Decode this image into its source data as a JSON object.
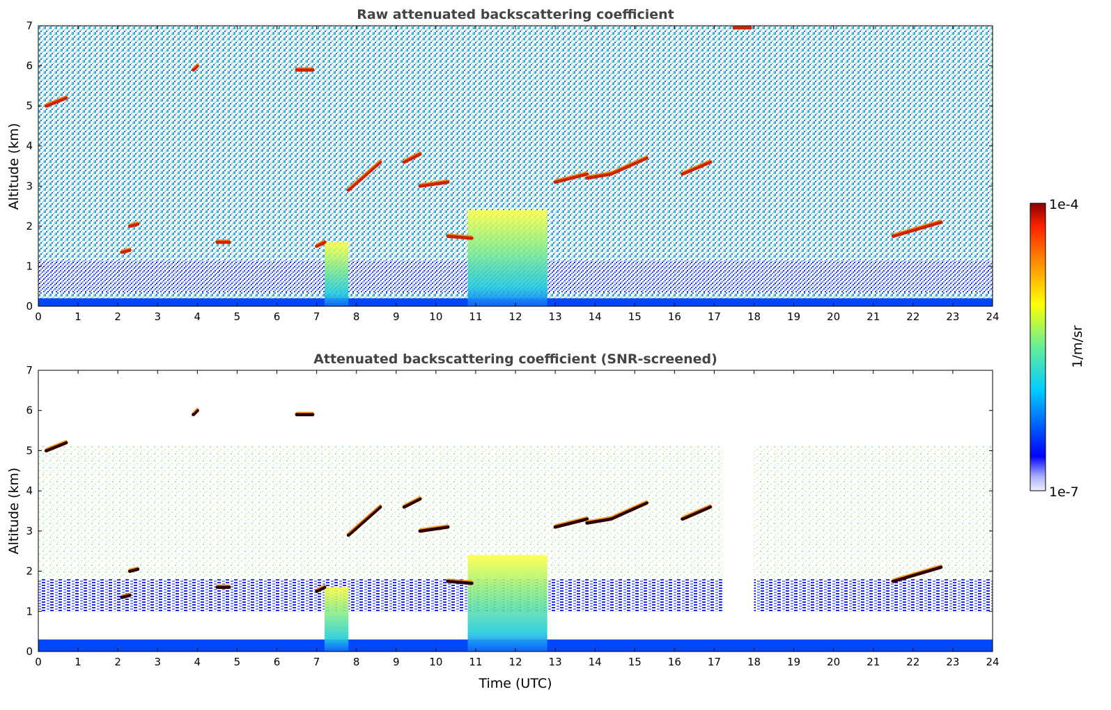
{
  "chart_data": [
    {
      "type": "heatmap",
      "title": "Raw attenuated backscattering coefficient",
      "xlabel": "",
      "ylabel": "Altitude (km)",
      "xlim": [
        0,
        24
      ],
      "ylim": [
        0,
        7
      ],
      "x_ticks": [
        "0",
        "1",
        "2",
        "3",
        "4",
        "5",
        "6",
        "7",
        "8",
        "9",
        "10",
        "11",
        "12",
        "13",
        "14",
        "15",
        "16",
        "17",
        "18",
        "19",
        "20",
        "21",
        "22",
        "23",
        "24"
      ],
      "y_ticks": [
        "0",
        "1",
        "2",
        "3",
        "4",
        "5",
        "6",
        "7"
      ],
      "layers": [
        {
          "feature": "surface layer",
          "t_start": 0,
          "t_end": 24,
          "alt_bottom": 0.0,
          "alt_top": 0.2,
          "level": 0.2
        },
        {
          "feature": "precipitation",
          "t_start": 7.2,
          "t_end": 7.8,
          "alt_bottom": 0.0,
          "alt_top": 1.6,
          "level": 0.55
        },
        {
          "feature": "precipitation",
          "t_start": 10.8,
          "t_end": 12.8,
          "alt_bottom": 0.0,
          "alt_top": 2.4,
          "level": 0.55
        }
      ],
      "cloud_segments": [
        {
          "t_start": 0.2,
          "t_end": 0.7,
          "alt_start": 5.0,
          "alt_end": 5.2
        },
        {
          "t_start": 2.1,
          "t_end": 2.3,
          "alt_start": 1.35,
          "alt_end": 1.4
        },
        {
          "t_start": 2.3,
          "t_end": 2.5,
          "alt_start": 2.0,
          "alt_end": 2.05
        },
        {
          "t_start": 3.9,
          "t_end": 4.0,
          "alt_start": 5.9,
          "alt_end": 6.0
        },
        {
          "t_start": 4.5,
          "t_end": 4.8,
          "alt_start": 1.6,
          "alt_end": 1.6
        },
        {
          "t_start": 6.5,
          "t_end": 6.9,
          "alt_start": 5.9,
          "alt_end": 5.9
        },
        {
          "t_start": 7.0,
          "t_end": 7.2,
          "alt_start": 1.5,
          "alt_end": 1.6
        },
        {
          "t_start": 7.8,
          "t_end": 8.6,
          "alt_start": 2.9,
          "alt_end": 3.6
        },
        {
          "t_start": 9.2,
          "t_end": 9.6,
          "alt_start": 3.6,
          "alt_end": 3.8
        },
        {
          "t_start": 9.6,
          "t_end": 10.3,
          "alt_start": 3.0,
          "alt_end": 3.1
        },
        {
          "t_start": 10.3,
          "t_end": 10.9,
          "alt_start": 1.75,
          "alt_end": 1.7
        },
        {
          "t_start": 13.0,
          "t_end": 13.8,
          "alt_start": 3.1,
          "alt_end": 3.3
        },
        {
          "t_start": 13.8,
          "t_end": 14.4,
          "alt_start": 3.2,
          "alt_end": 3.3
        },
        {
          "t_start": 14.4,
          "t_end": 15.3,
          "alt_start": 3.3,
          "alt_end": 3.7
        },
        {
          "t_start": 16.2,
          "t_end": 16.9,
          "alt_start": 3.3,
          "alt_end": 3.6
        },
        {
          "t_start": 17.5,
          "t_end": 17.9,
          "alt_start": 6.95,
          "alt_end": 6.95
        },
        {
          "t_start": 21.5,
          "t_end": 22.7,
          "alt_start": 1.75,
          "alt_end": 2.1
        }
      ]
    },
    {
      "type": "heatmap",
      "title": "Attenuated backscattering coefficient (SNR-screened)",
      "xlabel": "Time (UTC)",
      "ylabel": "Altitude (km)",
      "xlim": [
        0,
        24
      ],
      "ylim": [
        0,
        7
      ],
      "x_ticks": [
        "0",
        "1",
        "2",
        "3",
        "4",
        "5",
        "6",
        "7",
        "8",
        "9",
        "10",
        "11",
        "12",
        "13",
        "14",
        "15",
        "16",
        "17",
        "18",
        "19",
        "20",
        "21",
        "22",
        "23",
        "24"
      ],
      "y_ticks": [
        "0",
        "1",
        "2",
        "3",
        "4",
        "5",
        "6",
        "7"
      ],
      "layers": [
        {
          "feature": "surface layer",
          "t_start": 0,
          "t_end": 24,
          "alt_bottom": 0.0,
          "alt_top": 0.3,
          "level": 0.2
        },
        {
          "feature": "boundary layer",
          "t_start": 0,
          "t_end": 24,
          "alt_bottom": 1.0,
          "alt_top": 1.8,
          "level": 0.2
        },
        {
          "feature": "screened out",
          "t_start": 17.2,
          "t_end": 18.0,
          "alt_bottom": 0.35,
          "alt_top": 7.0,
          "level": 0.0
        },
        {
          "feature": "precipitation",
          "t_start": 7.2,
          "t_end": 7.8,
          "alt_bottom": 0.0,
          "alt_top": 1.6,
          "level": 0.55
        },
        {
          "feature": "precipitation",
          "t_start": 10.8,
          "t_end": 12.8,
          "alt_bottom": 0.0,
          "alt_top": 2.4,
          "level": 0.55
        }
      ],
      "cloud_segments": [
        {
          "t_start": 0.2,
          "t_end": 0.7,
          "alt_start": 5.0,
          "alt_end": 5.2
        },
        {
          "t_start": 2.1,
          "t_end": 2.3,
          "alt_start": 1.35,
          "alt_end": 1.4
        },
        {
          "t_start": 2.3,
          "t_end": 2.5,
          "alt_start": 2.0,
          "alt_end": 2.05
        },
        {
          "t_start": 3.9,
          "t_end": 4.0,
          "alt_start": 5.9,
          "alt_end": 6.0
        },
        {
          "t_start": 4.5,
          "t_end": 4.8,
          "alt_start": 1.6,
          "alt_end": 1.6
        },
        {
          "t_start": 6.5,
          "t_end": 6.9,
          "alt_start": 5.9,
          "alt_end": 5.9
        },
        {
          "t_start": 7.0,
          "t_end": 7.2,
          "alt_start": 1.5,
          "alt_end": 1.6
        },
        {
          "t_start": 7.8,
          "t_end": 8.6,
          "alt_start": 2.9,
          "alt_end": 3.6
        },
        {
          "t_start": 9.2,
          "t_end": 9.6,
          "alt_start": 3.6,
          "alt_end": 3.8
        },
        {
          "t_start": 9.6,
          "t_end": 10.3,
          "alt_start": 3.0,
          "alt_end": 3.1
        },
        {
          "t_start": 10.3,
          "t_end": 10.9,
          "alt_start": 1.75,
          "alt_end": 1.7
        },
        {
          "t_start": 13.0,
          "t_end": 13.8,
          "alt_start": 3.1,
          "alt_end": 3.3
        },
        {
          "t_start": 13.8,
          "t_end": 14.4,
          "alt_start": 3.2,
          "alt_end": 3.3
        },
        {
          "t_start": 14.4,
          "t_end": 15.3,
          "alt_start": 3.3,
          "alt_end": 3.7
        },
        {
          "t_start": 16.2,
          "t_end": 16.9,
          "alt_start": 3.3,
          "alt_end": 3.6
        },
        {
          "t_start": 21.5,
          "t_end": 22.7,
          "alt_start": 1.75,
          "alt_end": 2.1
        }
      ]
    }
  ],
  "colorbar": {
    "label": "1/m/sr",
    "max_label": "1e-4",
    "min_label": "1e-7",
    "colors": [
      "#eeeeff",
      "#0000ff",
      "#00ccff",
      "#66ee99",
      "#ffff00",
      "#ff8800",
      "#ff2200",
      "#8b0000"
    ]
  }
}
